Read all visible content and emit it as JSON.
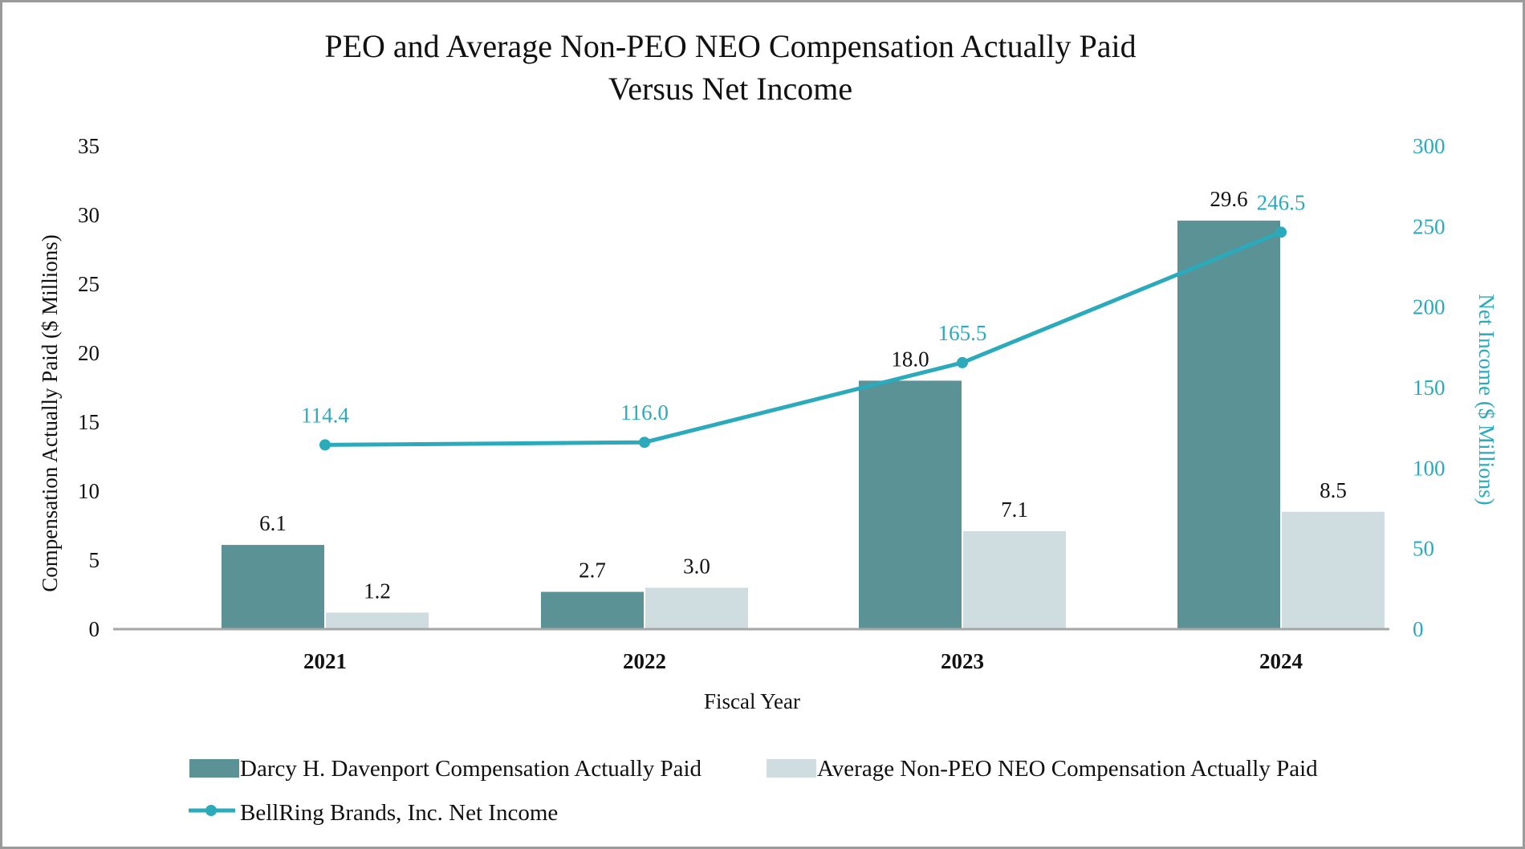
{
  "chart_data": {
    "type": "bar",
    "title": [
      "PEO and Average Non-PEO NEO Compensation Actually Paid",
      "Versus Net Income"
    ],
    "xlabel": "Fiscal Year",
    "ylabel": "Compensation Actually Paid ($ Millions)",
    "y2label": "Net Income ($ Millions)",
    "categories": [
      "2021",
      "2022",
      "2023",
      "2024"
    ],
    "ylim": [
      0,
      35
    ],
    "yticks": [
      "0",
      "5",
      "10",
      "15",
      "20",
      "25",
      "30",
      "35"
    ],
    "y2lim": [
      0,
      300
    ],
    "y2ticks": [
      "0",
      "50",
      "100",
      "150",
      "200",
      "250",
      "300"
    ],
    "series": [
      {
        "name": "Darcy H. Davenport Compensation Actually Paid",
        "type": "bar",
        "axis": "left",
        "color": "#5a9296",
        "values": [
          6.1,
          2.7,
          18.0,
          29.6
        ],
        "labels": [
          "6.1",
          "2.7",
          "18.0",
          "29.6"
        ]
      },
      {
        "name": "Average Non-PEO NEO Compensation Actually Paid",
        "type": "bar",
        "axis": "left",
        "color": "#cfdde1",
        "values": [
          1.2,
          3.0,
          7.1,
          8.5
        ],
        "labels": [
          "1.2",
          "3.0",
          "7.1",
          "8.5"
        ]
      },
      {
        "name": "BellRing Brands, Inc. Net Income",
        "type": "line",
        "axis": "right",
        "color": "#2aaabb",
        "values": [
          114.4,
          116.0,
          165.5,
          246.5
        ],
        "labels": [
          "114.4",
          "116.0",
          "165.5",
          "246.5"
        ]
      }
    ],
    "legend": "bottom",
    "grid": false
  },
  "colors": {
    "text": "#111111",
    "axis": "#a6a6a6",
    "line_label": "#2aaabb"
  }
}
